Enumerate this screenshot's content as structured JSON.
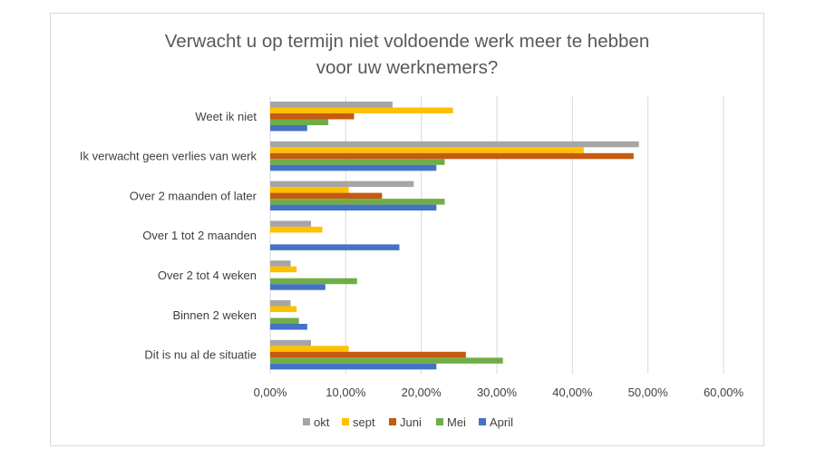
{
  "chart_data": {
    "type": "bar",
    "orientation": "horizontal",
    "title_lines": [
      "Verwacht u op termijn niet voldoende werk meer te hebben",
      "voor uw werknemers?"
    ],
    "categories": [
      "Weet ik niet",
      "Ik verwacht geen verlies van werk",
      "Over 2 maanden of later",
      "Over 1 tot 2 maanden",
      "Over 2 tot 4 weken",
      "Binnen 2 weken",
      "Dit is nu al de situatie"
    ],
    "series": [
      {
        "name": "okt",
        "color": "#a5a5a5",
        "values": [
          16.2,
          48.8,
          19.0,
          5.4,
          2.7,
          2.7,
          5.4
        ]
      },
      {
        "name": "sept",
        "color": "#ffc000",
        "values": [
          24.2,
          41.5,
          10.4,
          6.9,
          3.5,
          3.5,
          10.4
        ]
      },
      {
        "name": "Juni",
        "color": "#c55a11",
        "values": [
          11.1,
          48.1,
          14.8,
          0,
          0,
          0,
          25.9
        ]
      },
      {
        "name": "Mei",
        "color": "#70ad47",
        "values": [
          7.7,
          23.1,
          23.1,
          0,
          11.5,
          3.8,
          30.8
        ]
      },
      {
        "name": "April",
        "color": "#4472c4",
        "values": [
          4.9,
          22.0,
          22.0,
          17.1,
          7.3,
          4.9,
          22.0
        ]
      }
    ],
    "xticks": [
      "0,00%",
      "10,00%",
      "20,00%",
      "30,00%",
      "40,00%",
      "50,00%",
      "60,00%"
    ],
    "xlim": [
      0,
      60
    ],
    "grid": true,
    "legend_position": "bottom"
  },
  "colors": {
    "gridline": "#d9d9d9",
    "frame": "#d9d9d9"
  }
}
